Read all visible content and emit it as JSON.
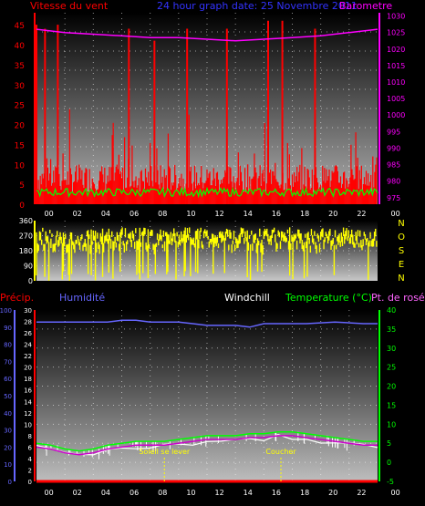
{
  "header": {
    "wind_label": "Vitesse du vent",
    "title": "24 hour graph date: 25 Novembre 2011",
    "baro_label": "Barometre"
  },
  "labels": {
    "precip": "Précip.",
    "humidity": "Humidité",
    "windchill": "Windchill",
    "temperature": "Temperature (°C)",
    "dewpoint": "Pt. de rosée",
    "sunrise": "Soleil se lever",
    "sunset": "Coucher"
  },
  "direction_letters": [
    "N",
    "O",
    "S",
    "E",
    "N"
  ],
  "time_ticks": [
    "00",
    "02",
    "04",
    "06",
    "08",
    "10",
    "12",
    "14",
    "16",
    "18",
    "20",
    "22",
    "00"
  ],
  "colors": {
    "wind": "#ff0000",
    "gust_avg": "#00ff00",
    "barometer": "#ff00ff",
    "direction": "#ffff00",
    "humidity": "#6666ff",
    "temperature": "#00ff00",
    "windchill": "#ffffff",
    "dewpoint": "#cc00cc",
    "precip": "#ff0000",
    "title": "#3333ff"
  },
  "chart_data": [
    {
      "type": "line",
      "name": "wind",
      "x_ticks": [
        "00",
        "02",
        "04",
        "06",
        "08",
        "10",
        "12",
        "14",
        "16",
        "18",
        "20",
        "22",
        "00"
      ],
      "y_left_ticks": [
        "0",
        "5",
        "10",
        "15",
        "20",
        "25",
        "30",
        "35",
        "40",
        "45"
      ],
      "ylim_left": [
        0,
        48
      ],
      "y_right_ticks": [
        "975",
        "980",
        "985",
        "990",
        "995",
        "1000",
        "1005",
        "1010",
        "1015",
        "1020",
        "1025",
        "1030"
      ],
      "ylim_right": [
        973,
        1031
      ],
      "gust_spikes": [
        {
          "h": 0.0,
          "v": 45
        },
        {
          "h": 0.6,
          "v": 44
        },
        {
          "h": 1.5,
          "v": 45
        },
        {
          "h": 6.5,
          "v": 44
        },
        {
          "h": 8.3,
          "v": 41
        },
        {
          "h": 10.6,
          "v": 44
        },
        {
          "h": 13.4,
          "v": 44
        },
        {
          "h": 16.3,
          "v": 46
        },
        {
          "h": 17.3,
          "v": 46
        },
        {
          "h": 19.6,
          "v": 44
        }
      ],
      "barometer": [
        [
          0,
          1026
        ],
        [
          2,
          1025
        ],
        [
          4,
          1024.5
        ],
        [
          6,
          1024
        ],
        [
          8,
          1023.5
        ],
        [
          10,
          1023.5
        ],
        [
          12,
          1023
        ],
        [
          14,
          1022.5
        ],
        [
          16,
          1023
        ],
        [
          18,
          1023.5
        ],
        [
          20,
          1024
        ],
        [
          22,
          1025
        ],
        [
          24,
          1026
        ]
      ],
      "wind_avg_range": [
        2,
        4
      ],
      "wind_base_range": [
        3,
        10
      ]
    },
    {
      "type": "bar",
      "name": "direction",
      "y_ticks": [
        "0",
        "90",
        "180",
        "270",
        "360"
      ],
      "ylim": [
        0,
        360
      ],
      "typical_range": [
        210,
        320
      ]
    },
    {
      "type": "line",
      "name": "temperature",
      "y_left_ticks": [
        "0",
        "10",
        "20",
        "30",
        "40",
        "50",
        "60",
        "70",
        "80",
        "90",
        "100"
      ],
      "ylim_left": [
        0,
        100
      ],
      "y_right_ticks": [
        "-5",
        "0",
        "5",
        "10",
        "15",
        "20",
        "25",
        "30",
        "35",
        "40"
      ],
      "ylim_right": [
        -5,
        40
      ],
      "y_precip_ticks": [
        "0",
        "2",
        "4",
        "6",
        "8",
        "10",
        "12",
        "14",
        "16",
        "18",
        "20",
        "22",
        "24",
        "26",
        "28",
        "30"
      ],
      "ylim_precip": [
        0,
        30
      ],
      "humidity": [
        [
          0,
          93
        ],
        [
          1,
          93
        ],
        [
          3,
          93
        ],
        [
          5,
          93
        ],
        [
          6,
          94
        ],
        [
          7,
          94
        ],
        [
          8,
          93
        ],
        [
          10,
          93
        ],
        [
          11,
          92
        ],
        [
          12,
          91
        ],
        [
          14,
          91
        ],
        [
          15,
          90
        ],
        [
          16,
          92
        ],
        [
          17,
          92
        ],
        [
          19,
          92
        ],
        [
          21,
          93
        ],
        [
          23,
          92
        ],
        [
          24,
          92
        ]
      ],
      "temperature": [
        [
          0,
          5
        ],
        [
          1,
          4.5
        ],
        [
          2,
          3.5
        ],
        [
          3,
          3
        ],
        [
          4,
          3.5
        ],
        [
          5,
          4.5
        ],
        [
          6,
          5
        ],
        [
          7,
          5.5
        ],
        [
          8,
          5.5
        ],
        [
          9,
          5.5
        ],
        [
          10,
          6
        ],
        [
          11,
          6.5
        ],
        [
          12,
          7
        ],
        [
          13,
          7
        ],
        [
          14,
          7
        ],
        [
          15,
          7.5
        ],
        [
          16,
          7.5
        ],
        [
          17,
          8
        ],
        [
          18,
          8
        ],
        [
          19,
          7.5
        ],
        [
          20,
          7
        ],
        [
          21,
          6.5
        ],
        [
          22,
          6
        ],
        [
          23,
          5.5
        ],
        [
          24,
          5.5
        ]
      ],
      "dewpoint": [
        [
          0,
          4
        ],
        [
          1,
          3.5
        ],
        [
          2,
          2.5
        ],
        [
          3,
          2
        ],
        [
          4,
          2.5
        ],
        [
          5,
          3.5
        ],
        [
          6,
          4
        ],
        [
          7,
          4.5
        ],
        [
          8,
          4.5
        ],
        [
          9,
          4.5
        ],
        [
          10,
          5
        ],
        [
          11,
          5.5
        ],
        [
          12,
          6
        ],
        [
          13,
          6
        ],
        [
          14,
          6
        ],
        [
          15,
          6.5
        ],
        [
          16,
          6.5
        ],
        [
          17,
          7
        ],
        [
          18,
          7
        ],
        [
          19,
          6.5
        ],
        [
          20,
          6
        ],
        [
          21,
          5.5
        ],
        [
          22,
          5
        ],
        [
          23,
          4.5
        ],
        [
          24,
          4.5
        ]
      ],
      "precip": [
        [
          0,
          0
        ],
        [
          24,
          0
        ]
      ],
      "sunrise_hour": 9.0,
      "sunset_hour": 17.2
    }
  ]
}
